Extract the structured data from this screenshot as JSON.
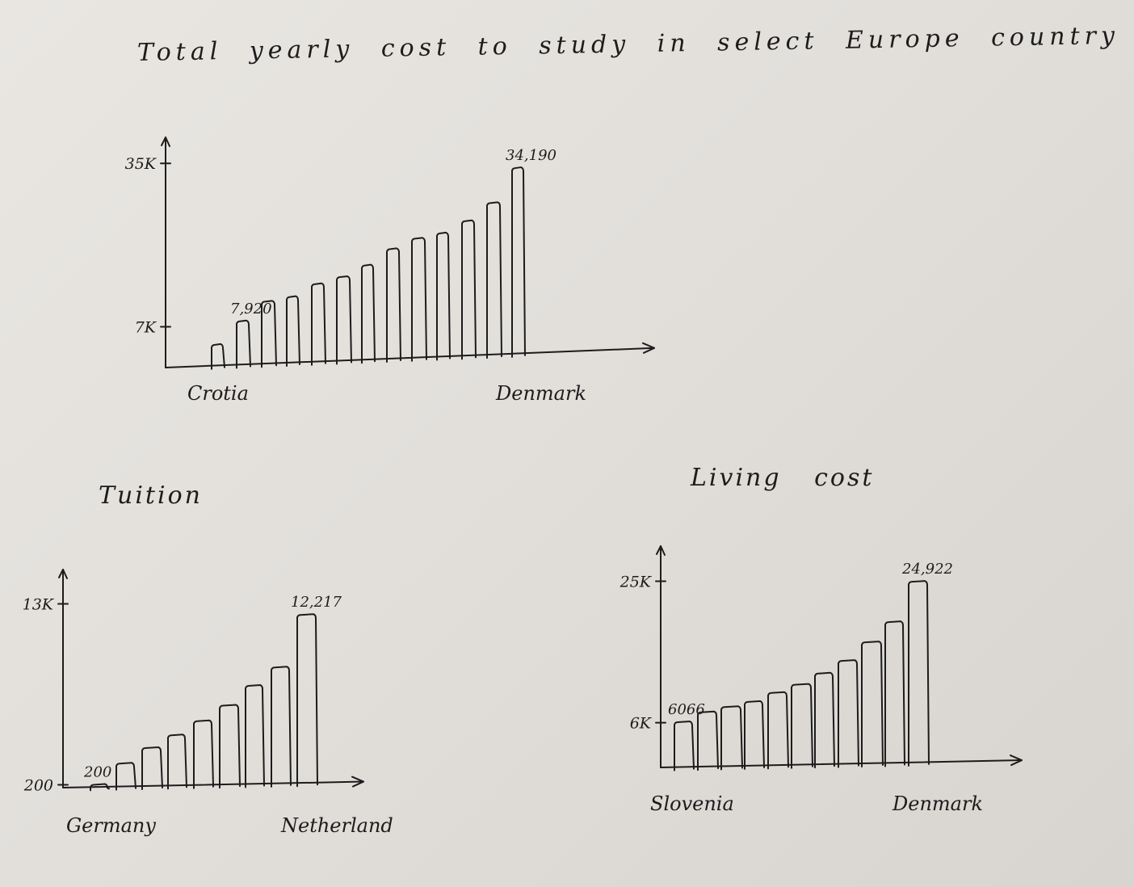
{
  "page": {
    "title": "Total yearly cost to study in select Europe country"
  },
  "chart_data": [
    {
      "type": "bar",
      "title": "",
      "categories": [
        "Crotia",
        "",
        "",
        "",
        "",
        "",
        "",
        "",
        "",
        "",
        "",
        "",
        "Denmark"
      ],
      "values": [
        3900,
        7920,
        11300,
        12100,
        14300,
        15500,
        17500,
        20300,
        22100,
        23000,
        25100,
        28200,
        34190
      ],
      "y_ticks": [
        {
          "value": 7000,
          "label": "7K"
        },
        {
          "value": 35000,
          "label": "35K"
        }
      ],
      "ylim": [
        0,
        36000
      ],
      "data_labels": [
        {
          "index": 1,
          "label": "7,920"
        },
        {
          "index": 12,
          "label": "34,190"
        }
      ],
      "xlabel": "",
      "ylabel": "",
      "grid": false,
      "legend": "none"
    },
    {
      "type": "bar",
      "title": "Tuition",
      "categories": [
        "Germany",
        "",
        "",
        "",
        "",
        "",
        "",
        "",
        "Netherland"
      ],
      "values": [
        200,
        1700,
        2800,
        3700,
        4700,
        5800,
        7200,
        8500,
        12217
      ],
      "y_ticks": [
        {
          "value": 200,
          "label": "200"
        },
        {
          "value": 13000,
          "label": "13K"
        }
      ],
      "ylim": [
        0,
        14000
      ],
      "data_labels": [
        {
          "index": 0,
          "label": "200"
        },
        {
          "index": 8,
          "label": "12,217"
        }
      ],
      "xlabel": "",
      "ylabel": "",
      "grid": false,
      "legend": "none"
    },
    {
      "type": "bar",
      "title": "Living cost",
      "categories": [
        "Slovenia",
        "",
        "",
        "",
        "",
        "",
        "",
        "",
        "",
        "",
        "Denmark"
      ],
      "values": [
        6066,
        7400,
        8100,
        8800,
        10000,
        11100,
        12600,
        14300,
        16800,
        19500,
        24922
      ],
      "y_ticks": [
        {
          "value": 6000,
          "label": "6K"
        },
        {
          "value": 25000,
          "label": "25K"
        }
      ],
      "ylim": [
        0,
        27000
      ],
      "data_labels": [
        {
          "index": 0,
          "label": "6066"
        },
        {
          "index": 10,
          "label": "24,922"
        }
      ],
      "xlabel": "",
      "ylabel": "",
      "grid": false,
      "legend": "none"
    }
  ]
}
